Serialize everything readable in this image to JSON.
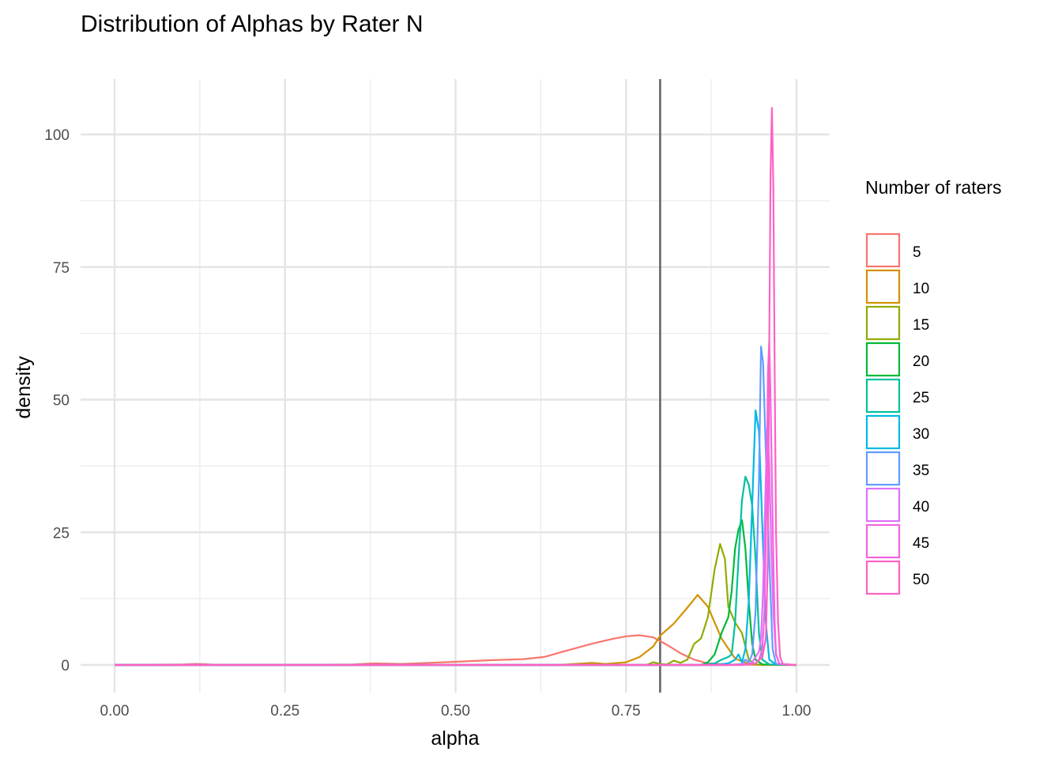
{
  "chart_data": {
    "type": "line",
    "title": "Distribution of Alphas by Rater N",
    "xlabel": "alpha",
    "ylabel": "density",
    "xlim": [
      -0.02,
      1.02
    ],
    "ylim": [
      -5,
      110
    ],
    "x_ticks": [
      0.0,
      0.25,
      0.5,
      0.75,
      1.0
    ],
    "x_tick_labels": [
      "0.00",
      "0.25",
      "0.50",
      "0.75",
      "1.00"
    ],
    "y_ticks": [
      0,
      25,
      50,
      75,
      100
    ],
    "y_tick_labels": [
      "0",
      "25",
      "50",
      "75",
      "100"
    ],
    "grid": true,
    "reference_line": {
      "orientation": "vertical",
      "x": 0.8,
      "color": "#666666"
    },
    "legend": {
      "title": "Number of raters",
      "placement": "right"
    },
    "series": [
      {
        "name": "5",
        "color": "#F8766D",
        "x": [
          0.0,
          0.05,
          0.1,
          0.12,
          0.15,
          0.2,
          0.3,
          0.35,
          0.38,
          0.42,
          0.45,
          0.5,
          0.55,
          0.6,
          0.63,
          0.66,
          0.7,
          0.73,
          0.75,
          0.77,
          0.79,
          0.81,
          0.83,
          0.85,
          0.87,
          0.9,
          0.93,
          0.96,
          1.0
        ],
        "y": [
          0,
          0.05,
          0.1,
          0.2,
          0.05,
          0.05,
          0.05,
          0.1,
          0.3,
          0.2,
          0.35,
          0.6,
          0.9,
          1.1,
          1.5,
          2.6,
          4.0,
          4.9,
          5.4,
          5.6,
          5.2,
          3.8,
          2.2,
          1.0,
          0.3,
          0.1,
          0.05,
          0.02,
          0.0
        ]
      },
      {
        "name": "10",
        "color": "#D39200",
        "x": [
          0.0,
          0.5,
          0.65,
          0.69,
          0.7,
          0.72,
          0.75,
          0.77,
          0.79,
          0.8,
          0.82,
          0.84,
          0.855,
          0.87,
          0.89,
          0.91,
          0.93,
          0.95,
          1.0
        ],
        "y": [
          0,
          0,
          0,
          0.3,
          0.4,
          0.2,
          0.5,
          1.5,
          3.5,
          5.5,
          7.8,
          10.8,
          13.2,
          11.0,
          5.0,
          1.2,
          0.2,
          0.0,
          0.0
        ]
      },
      {
        "name": "15",
        "color": "#93AA00",
        "x": [
          0.0,
          0.75,
          0.78,
          0.79,
          0.8,
          0.81,
          0.82,
          0.83,
          0.84,
          0.85,
          0.86,
          0.87,
          0.88,
          0.888,
          0.895,
          0.9,
          0.91,
          0.92,
          0.93,
          0.94,
          1.0
        ],
        "y": [
          0,
          0,
          0,
          0.5,
          0.2,
          0.1,
          0.8,
          0.4,
          1.0,
          4.0,
          5.0,
          9.0,
          18.0,
          22.8,
          20.0,
          11.0,
          8.0,
          6.0,
          1.0,
          0.1,
          0.0
        ]
      },
      {
        "name": "20",
        "color": "#00BA38",
        "x": [
          0.0,
          0.84,
          0.86,
          0.87,
          0.88,
          0.89,
          0.9,
          0.905,
          0.91,
          0.915,
          0.92,
          0.925,
          0.93,
          0.935,
          0.94,
          0.95,
          1.0
        ],
        "y": [
          0,
          0,
          0,
          0.5,
          2.0,
          6.0,
          9.0,
          14.0,
          22.0,
          25.5,
          27.3,
          22.0,
          12.0,
          4.0,
          1.0,
          0.1,
          0.0
        ]
      },
      {
        "name": "25",
        "color": "#00C19F",
        "x": [
          0.0,
          0.86,
          0.88,
          0.89,
          0.9,
          0.905,
          0.91,
          0.915,
          0.92,
          0.925,
          0.93,
          0.935,
          0.94,
          0.945,
          0.95,
          0.96,
          1.0
        ],
        "y": [
          0,
          0,
          0.3,
          1.0,
          1.5,
          2.0,
          8.0,
          20.0,
          31.0,
          35.5,
          34.0,
          30.0,
          20.0,
          6.0,
          1.0,
          0.1,
          0.0
        ]
      },
      {
        "name": "30",
        "color": "#00B9E3",
        "x": [
          0.0,
          0.88,
          0.9,
          0.91,
          0.915,
          0.92,
          0.925,
          0.93,
          0.935,
          0.94,
          0.945,
          0.95,
          0.955,
          0.96,
          0.97,
          1.0
        ],
        "y": [
          0,
          0,
          0.3,
          1.0,
          2.0,
          0.5,
          3.0,
          12.0,
          30.0,
          48.0,
          44.0,
          26.0,
          8.0,
          1.0,
          0.1,
          0.0
        ]
      },
      {
        "name": "35",
        "color": "#619CFF",
        "x": [
          0.0,
          0.9,
          0.92,
          0.925,
          0.93,
          0.935,
          0.94,
          0.945,
          0.948,
          0.951,
          0.955,
          0.96,
          0.965,
          0.97,
          1.0
        ],
        "y": [
          0,
          0,
          0.2,
          1.0,
          0.5,
          2.0,
          10.0,
          35.0,
          60.0,
          57.0,
          40.0,
          20.0,
          3.0,
          0.2,
          0.0
        ]
      },
      {
        "name": "40",
        "color": "#DB72FB",
        "x": [
          0.0,
          0.91,
          0.93,
          0.935,
          0.94,
          0.945,
          0.948,
          0.951,
          0.954,
          0.957,
          0.96,
          0.963,
          0.966,
          0.97,
          0.975,
          1.0
        ],
        "y": [
          0,
          0,
          0.2,
          0.5,
          1.5,
          2.5,
          5.0,
          14.0,
          30.0,
          45.0,
          38.0,
          22.0,
          10.0,
          2.0,
          0.2,
          0.0
        ]
      },
      {
        "name": "45",
        "color": "#F564E3",
        "x": [
          0.0,
          0.92,
          0.94,
          0.945,
          0.95,
          0.953,
          0.956,
          0.958,
          0.96,
          0.962,
          0.964,
          0.966,
          0.968,
          0.97,
          0.975,
          1.0
        ],
        "y": [
          0,
          0,
          0.3,
          1.0,
          3.0,
          10.0,
          30.0,
          55.0,
          61.0,
          50.0,
          35.0,
          20.0,
          8.0,
          2.0,
          0.2,
          0.0
        ]
      },
      {
        "name": "50",
        "color": "#FF61C3",
        "x": [
          0.0,
          0.92,
          0.94,
          0.95,
          0.955,
          0.958,
          0.96,
          0.962,
          0.964,
          0.966,
          0.968,
          0.97,
          0.973,
          0.976,
          0.98,
          1.0
        ],
        "y": [
          0,
          0,
          0.3,
          1.5,
          5.0,
          20.0,
          60.0,
          93.0,
          105.0,
          90.0,
          55.0,
          25.0,
          8.0,
          1.5,
          0.1,
          0.0
        ]
      }
    ]
  }
}
